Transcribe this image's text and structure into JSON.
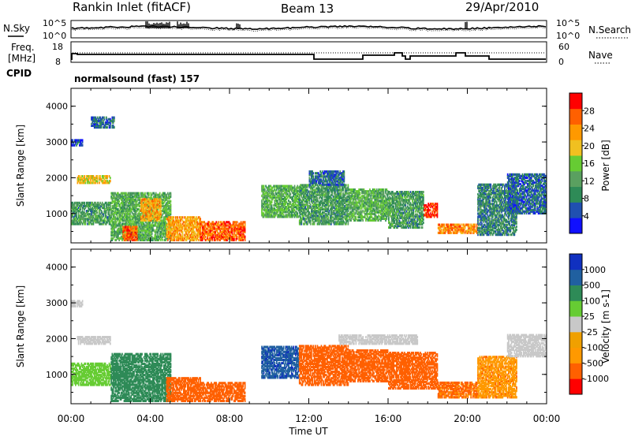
{
  "header": {
    "station": "Rankin Inlet (fitACF)",
    "beam": "Beam 13",
    "date": "29/Apr/2010"
  },
  "noise_panel": {
    "left_label": "N.Sky",
    "right_label": "N.Search",
    "left_ticks": [
      "10^5",
      "10^0"
    ],
    "right_ticks": [
      "10^5",
      "10^0"
    ]
  },
  "freq_panel": {
    "left_label_line1": "Freq.",
    "left_label_line2": "[MHz]",
    "right_label": "Nave",
    "left_ticks": [
      "18",
      "8"
    ],
    "right_ticks": [
      "60",
      "0"
    ],
    "cpid_label": "CPID",
    "cpid_value": "normalsound (fast) 157"
  },
  "colors": {
    "power": [
      "#1010ff",
      "#2050b0",
      "#2e8b57",
      "#5aa060",
      "#66cc33",
      "#f0c020",
      "#ff9900",
      "#ff6000",
      "#ff0000"
    ],
    "velocity": [
      "#ff0000",
      "#ff6000",
      "#ff9900",
      "#f0a000",
      "#c8c8c8",
      "#66cc33",
      "#2e8b57",
      "#2060a0",
      "#1030c0"
    ]
  },
  "chart_data": [
    {
      "type": "heatmap",
      "name": "power",
      "xlabel": "",
      "ylabel": "Slant Range [km]",
      "xlim": [
        0,
        24
      ],
      "ylim": [
        180,
        4500
      ],
      "yticks": [
        "4000",
        "3000",
        "2000",
        "1000"
      ],
      "colorbar_label": "Power [dB]",
      "colorbar_ticks": [
        "28",
        "24",
        "20",
        "16",
        "12",
        "8",
        "4"
      ],
      "echo_regions": [
        {
          "t0": 0.0,
          "t1": 2.0,
          "r0": 700,
          "r1": 1300,
          "v": 12
        },
        {
          "t0": 0.3,
          "t1": 2.0,
          "r0": 1850,
          "r1": 2050,
          "v": 20
        },
        {
          "t0": 0.0,
          "t1": 0.6,
          "r0": 2900,
          "r1": 3050,
          "v": 6
        },
        {
          "t0": 1.0,
          "t1": 2.2,
          "r0": 3400,
          "r1": 3700,
          "v": 8
        },
        {
          "t0": 2.0,
          "t1": 5.0,
          "r0": 250,
          "r1": 1600,
          "v": 14
        },
        {
          "t0": 2.6,
          "t1": 3.3,
          "r0": 250,
          "r1": 650,
          "v": 26
        },
        {
          "t0": 3.5,
          "t1": 4.5,
          "r0": 800,
          "r1": 1400,
          "v": 22
        },
        {
          "t0": 4.8,
          "t1": 6.5,
          "r0": 250,
          "r1": 900,
          "v": 22
        },
        {
          "t0": 6.5,
          "t1": 8.8,
          "r0": 250,
          "r1": 750,
          "v": 26
        },
        {
          "t0": 9.6,
          "t1": 11.5,
          "r0": 900,
          "r1": 1800,
          "v": 14
        },
        {
          "t0": 11.5,
          "t1": 14.0,
          "r0": 700,
          "r1": 1800,
          "v": 12
        },
        {
          "t0": 14.0,
          "t1": 16.0,
          "r0": 800,
          "r1": 1700,
          "v": 14
        },
        {
          "t0": 16.0,
          "t1": 17.8,
          "r0": 600,
          "r1": 1600,
          "v": 12
        },
        {
          "t0": 17.8,
          "t1": 18.5,
          "r0": 900,
          "r1": 1300,
          "v": 28
        },
        {
          "t0": 18.5,
          "t1": 20.5,
          "r0": 450,
          "r1": 700,
          "v": 24
        },
        {
          "t0": 20.5,
          "t1": 22.5,
          "r0": 400,
          "r1": 1800,
          "v": 10
        },
        {
          "t0": 22.0,
          "t1": 24.0,
          "r0": 1000,
          "r1": 2100,
          "v": 8
        },
        {
          "t0": 12.0,
          "t1": 13.8,
          "r0": 1800,
          "r1": 2200,
          "v": 8
        }
      ]
    },
    {
      "type": "heatmap",
      "name": "velocity",
      "xlabel": "Time UT",
      "ylabel": "Slant Range [km]",
      "xlim": [
        0,
        24
      ],
      "ylim": [
        180,
        4500
      ],
      "xticks": [
        "00:00",
        "04:00",
        "08:00",
        "12:00",
        "16:00",
        "20:00",
        "00:00"
      ],
      "yticks": [
        "4000",
        "3000",
        "2000",
        "1000"
      ],
      "colorbar_label": "Velocity [m s-1]",
      "colorbar_ticks": [
        "1000",
        "500",
        "100",
        "25",
        "-25",
        "-100",
        "-500",
        "-1000"
      ],
      "echo_regions": [
        {
          "t0": 0.0,
          "t1": 2.0,
          "r0": 700,
          "r1": 1300,
          "v": 60
        },
        {
          "t0": 0.3,
          "t1": 2.0,
          "r0": 1850,
          "r1": 2050,
          "v": 0
        },
        {
          "t0": 0.0,
          "t1": 0.6,
          "r0": 2900,
          "r1": 3050,
          "v": 0
        },
        {
          "t0": 2.0,
          "t1": 5.0,
          "r0": 250,
          "r1": 1600,
          "v": 150
        },
        {
          "t0": 4.8,
          "t1": 6.5,
          "r0": 250,
          "r1": 900,
          "v": -150
        },
        {
          "t0": 6.5,
          "t1": 8.8,
          "r0": 250,
          "r1": 750,
          "v": -200
        },
        {
          "t0": 9.6,
          "t1": 11.5,
          "r0": 900,
          "r1": 1800,
          "v": 600
        },
        {
          "t0": 11.5,
          "t1": 14.0,
          "r0": 700,
          "r1": 1800,
          "v": -150
        },
        {
          "t0": 14.0,
          "t1": 16.0,
          "r0": 800,
          "r1": 1700,
          "v": -200
        },
        {
          "t0": 13.5,
          "t1": 17.5,
          "r0": 1850,
          "r1": 2100,
          "v": 0
        },
        {
          "t0": 16.0,
          "t1": 18.5,
          "r0": 600,
          "r1": 1600,
          "v": -300
        },
        {
          "t0": 18.5,
          "t1": 20.5,
          "r0": 350,
          "r1": 800,
          "v": -120
        },
        {
          "t0": 20.5,
          "t1": 22.5,
          "r0": 350,
          "r1": 1500,
          "v": -80
        },
        {
          "t0": 22.0,
          "t1": 24.0,
          "r0": 1500,
          "r1": 2100,
          "v": 0
        }
      ]
    }
  ]
}
